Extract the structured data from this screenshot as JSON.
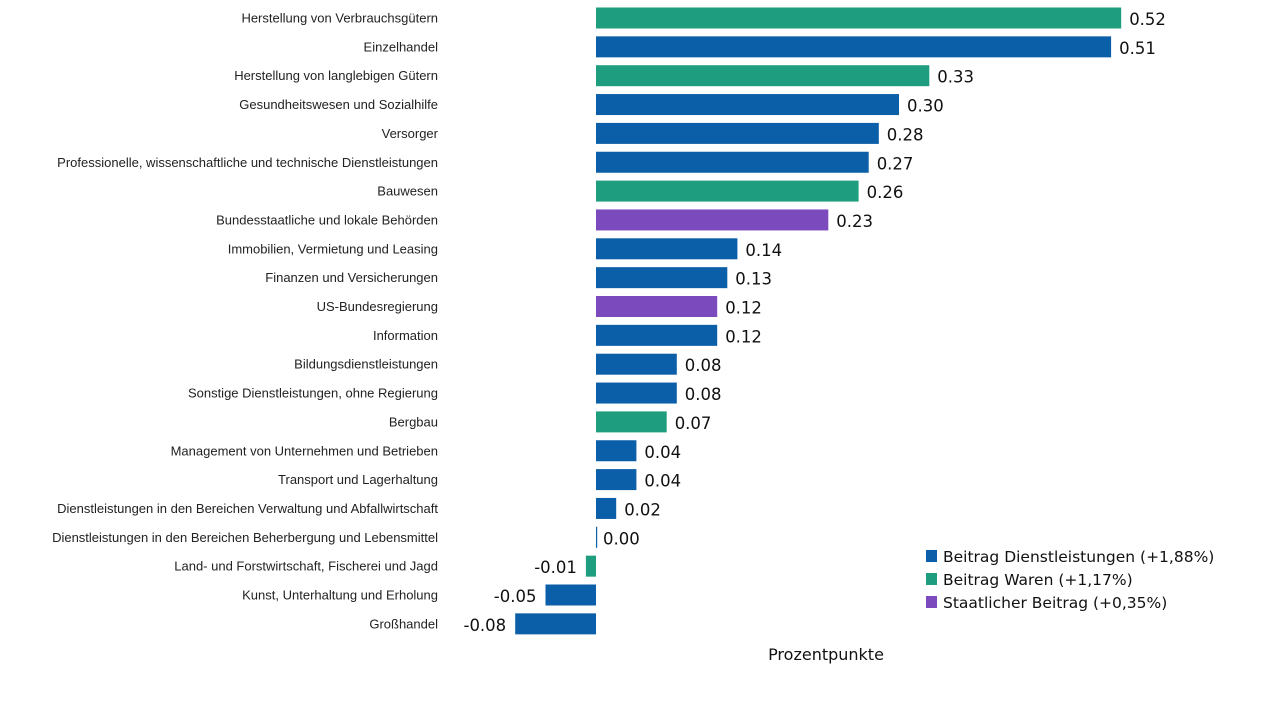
{
  "colors": {
    "services": "#0a5fa8",
    "goods": "#1f9e7f",
    "government": "#7b4bbd"
  },
  "chart_data": {
    "type": "bar",
    "orientation": "horizontal",
    "xlabel": "Prozentpunkte",
    "xlim": [
      -0.08,
      0.52
    ],
    "grid": false,
    "legend_position": "bottom-right",
    "series": [
      {
        "key": "services",
        "name": "Beitrag Dienstleistungen (+1,88%)"
      },
      {
        "key": "goods",
        "name": "Beitrag Waren (+1,17%)"
      },
      {
        "key": "government",
        "name": "Staatlicher Beitrag (+0,35%)"
      }
    ],
    "bars": [
      {
        "category": "Herstellung von Verbrauchsgütern",
        "value": 0.52,
        "label": "0.52",
        "series": "goods"
      },
      {
        "category": "Einzelhandel",
        "value": 0.51,
        "label": "0.51",
        "series": "services"
      },
      {
        "category": "Herstellung von langlebigen Gütern",
        "value": 0.33,
        "label": "0.33",
        "series": "goods"
      },
      {
        "category": "Gesundheitswesen und Sozialhilfe",
        "value": 0.3,
        "label": "0.30",
        "series": "services"
      },
      {
        "category": "Versorger",
        "value": 0.28,
        "label": "0.28",
        "series": "services"
      },
      {
        "category": "Professionelle, wissenschaftliche und technische Dienstleistungen",
        "value": 0.27,
        "label": "0.27",
        "series": "services"
      },
      {
        "category": "Bauwesen",
        "value": 0.26,
        "label": "0.26",
        "series": "goods"
      },
      {
        "category": "Bundesstaatliche und lokale Behörden",
        "value": 0.23,
        "label": "0.23",
        "series": "government"
      },
      {
        "category": "Immobilien, Vermietung und Leasing",
        "value": 0.14,
        "label": "0.14",
        "series": "services"
      },
      {
        "category": "Finanzen und Versicherungen",
        "value": 0.13,
        "label": "0.13",
        "series": "services"
      },
      {
        "category": "US-Bundesregierung",
        "value": 0.12,
        "label": "0.12",
        "series": "government"
      },
      {
        "category": "Information",
        "value": 0.12,
        "label": "0.12",
        "series": "services"
      },
      {
        "category": "Bildungsdienstleistungen",
        "value": 0.08,
        "label": "0.08",
        "series": "services"
      },
      {
        "category": "Sonstige Dienstleistungen, ohne Regierung",
        "value": 0.08,
        "label": "0.08",
        "series": "services"
      },
      {
        "category": "Bergbau",
        "value": 0.07,
        "label": "0.07",
        "series": "goods"
      },
      {
        "category": "Management von Unternehmen und Betrieben",
        "value": 0.04,
        "label": "0.04",
        "series": "services"
      },
      {
        "category": "Transport und Lagerhaltung",
        "value": 0.04,
        "label": "0.04",
        "series": "services"
      },
      {
        "category": "Dienstleistungen in den Bereichen Verwaltung und Abfallwirtschaft",
        "value": 0.02,
        "label": "0.02",
        "series": "services"
      },
      {
        "category": "Dienstleistungen in den Bereichen Beherbergung und Lebensmittel",
        "value": 0.0,
        "label": "0.00",
        "series": "services"
      },
      {
        "category": "Land- und Forstwirtschaft, Fischerei und Jagd",
        "value": -0.01,
        "label": "-0.01",
        "series": "goods"
      },
      {
        "category": "Kunst, Unterhaltung und Erholung",
        "value": -0.05,
        "label": "-0.05",
        "series": "services"
      },
      {
        "category": "Großhandel",
        "value": -0.08,
        "label": "-0.08",
        "series": "services"
      }
    ]
  }
}
